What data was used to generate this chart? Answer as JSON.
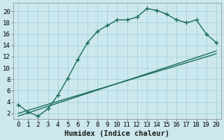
{
  "xlabel": "Humidex (Indice chaleur)",
  "bg_color": "#cce8ee",
  "grid_color": "#aad4dc",
  "line_color": "#1a6b5a",
  "xlim": [
    -0.5,
    20.5
  ],
  "ylim": [
    1.0,
    21.5
  ],
  "xticks": [
    0,
    1,
    2,
    3,
    4,
    5,
    6,
    7,
    8,
    9,
    10,
    11,
    12,
    13,
    14,
    15,
    16,
    17,
    18,
    19,
    20
  ],
  "yticks": [
    2,
    4,
    6,
    8,
    10,
    12,
    14,
    16,
    18,
    20
  ],
  "curve1_x": [
    0,
    1,
    2,
    3,
    4,
    5,
    6,
    7,
    8,
    9,
    10,
    11,
    12,
    13,
    14,
    15,
    16,
    17,
    18,
    19,
    20
  ],
  "curve1_y": [
    3.5,
    2.2,
    1.5,
    2.8,
    5.2,
    8.2,
    11.5,
    14.5,
    16.5,
    17.5,
    18.5,
    18.5,
    19.0,
    20.5,
    20.2,
    19.5,
    18.5,
    18.0,
    18.5,
    16.0,
    14.5
  ],
  "line1_x": [
    0,
    20
  ],
  "line1_y": [
    2.0,
    12.5
  ],
  "line2_x": [
    0,
    20
  ],
  "line2_y": [
    1.5,
    13.0
  ],
  "marker": "+",
  "markersize": 4,
  "linewidth": 1.0,
  "tick_fontsize": 6.5,
  "xlabel_fontsize": 7.5
}
